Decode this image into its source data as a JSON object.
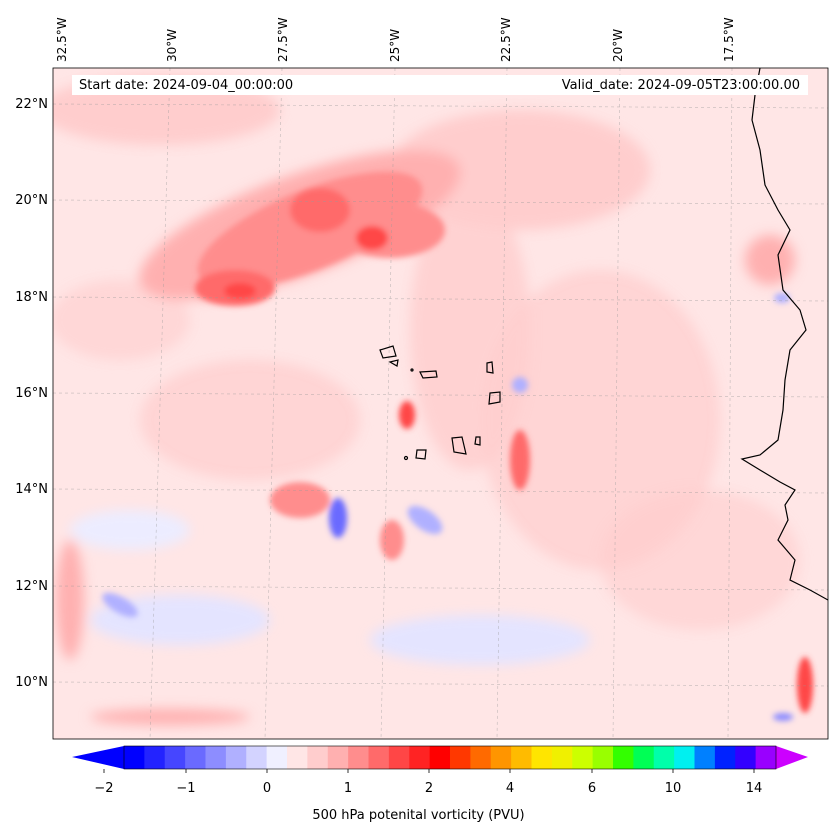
{
  "map": {
    "start_date": "Start date: 2024-09-04_00:00:00",
    "valid_date": "Valid_date: 2024-09-05T23:00:00.00",
    "lon_labels": [
      "32.5°W",
      "30°W",
      "27.5°W",
      "25°W",
      "22.5°W",
      "20°W",
      "17.5°W"
    ],
    "lat_labels": [
      "22°N",
      "20°N",
      "18°N",
      "16°N",
      "14°N",
      "12°N",
      "10°N"
    ],
    "extent": {
      "lon_min": -33,
      "lon_max": -15.7,
      "lat_min": 8.9,
      "lat_max": 22.8
    },
    "coastline_color": "#000000",
    "gridlines": true
  },
  "colorbar": {
    "label": "500 hPa potenital vorticity (PVU)",
    "tick_labels": [
      "−2",
      "−1",
      "0",
      "1",
      "2",
      "4",
      "6",
      "10",
      "14"
    ],
    "colors": [
      "#0000ff",
      "#2323ff",
      "#4646ff",
      "#6a6aff",
      "#8d8dff",
      "#b0b0ff",
      "#d3d3ff",
      "#f0f0ff",
      "#ffe6e6",
      "#ffcdcd",
      "#ffb0b0",
      "#ff8d8d",
      "#ff6a6a",
      "#ff4646",
      "#ff2323",
      "#ff0000",
      "#ff3800",
      "#ff6a00",
      "#ff9500",
      "#ffbb00",
      "#ffe500",
      "#f0f000",
      "#ccff00",
      "#99ff00",
      "#33ff00",
      "#00ff55",
      "#00ffaa",
      "#00f0f0",
      "#0080ff",
      "#0022ff",
      "#3300ff",
      "#9900ff"
    ],
    "under_color": "#0000ff",
    "over_color": "#cc00ff"
  }
}
